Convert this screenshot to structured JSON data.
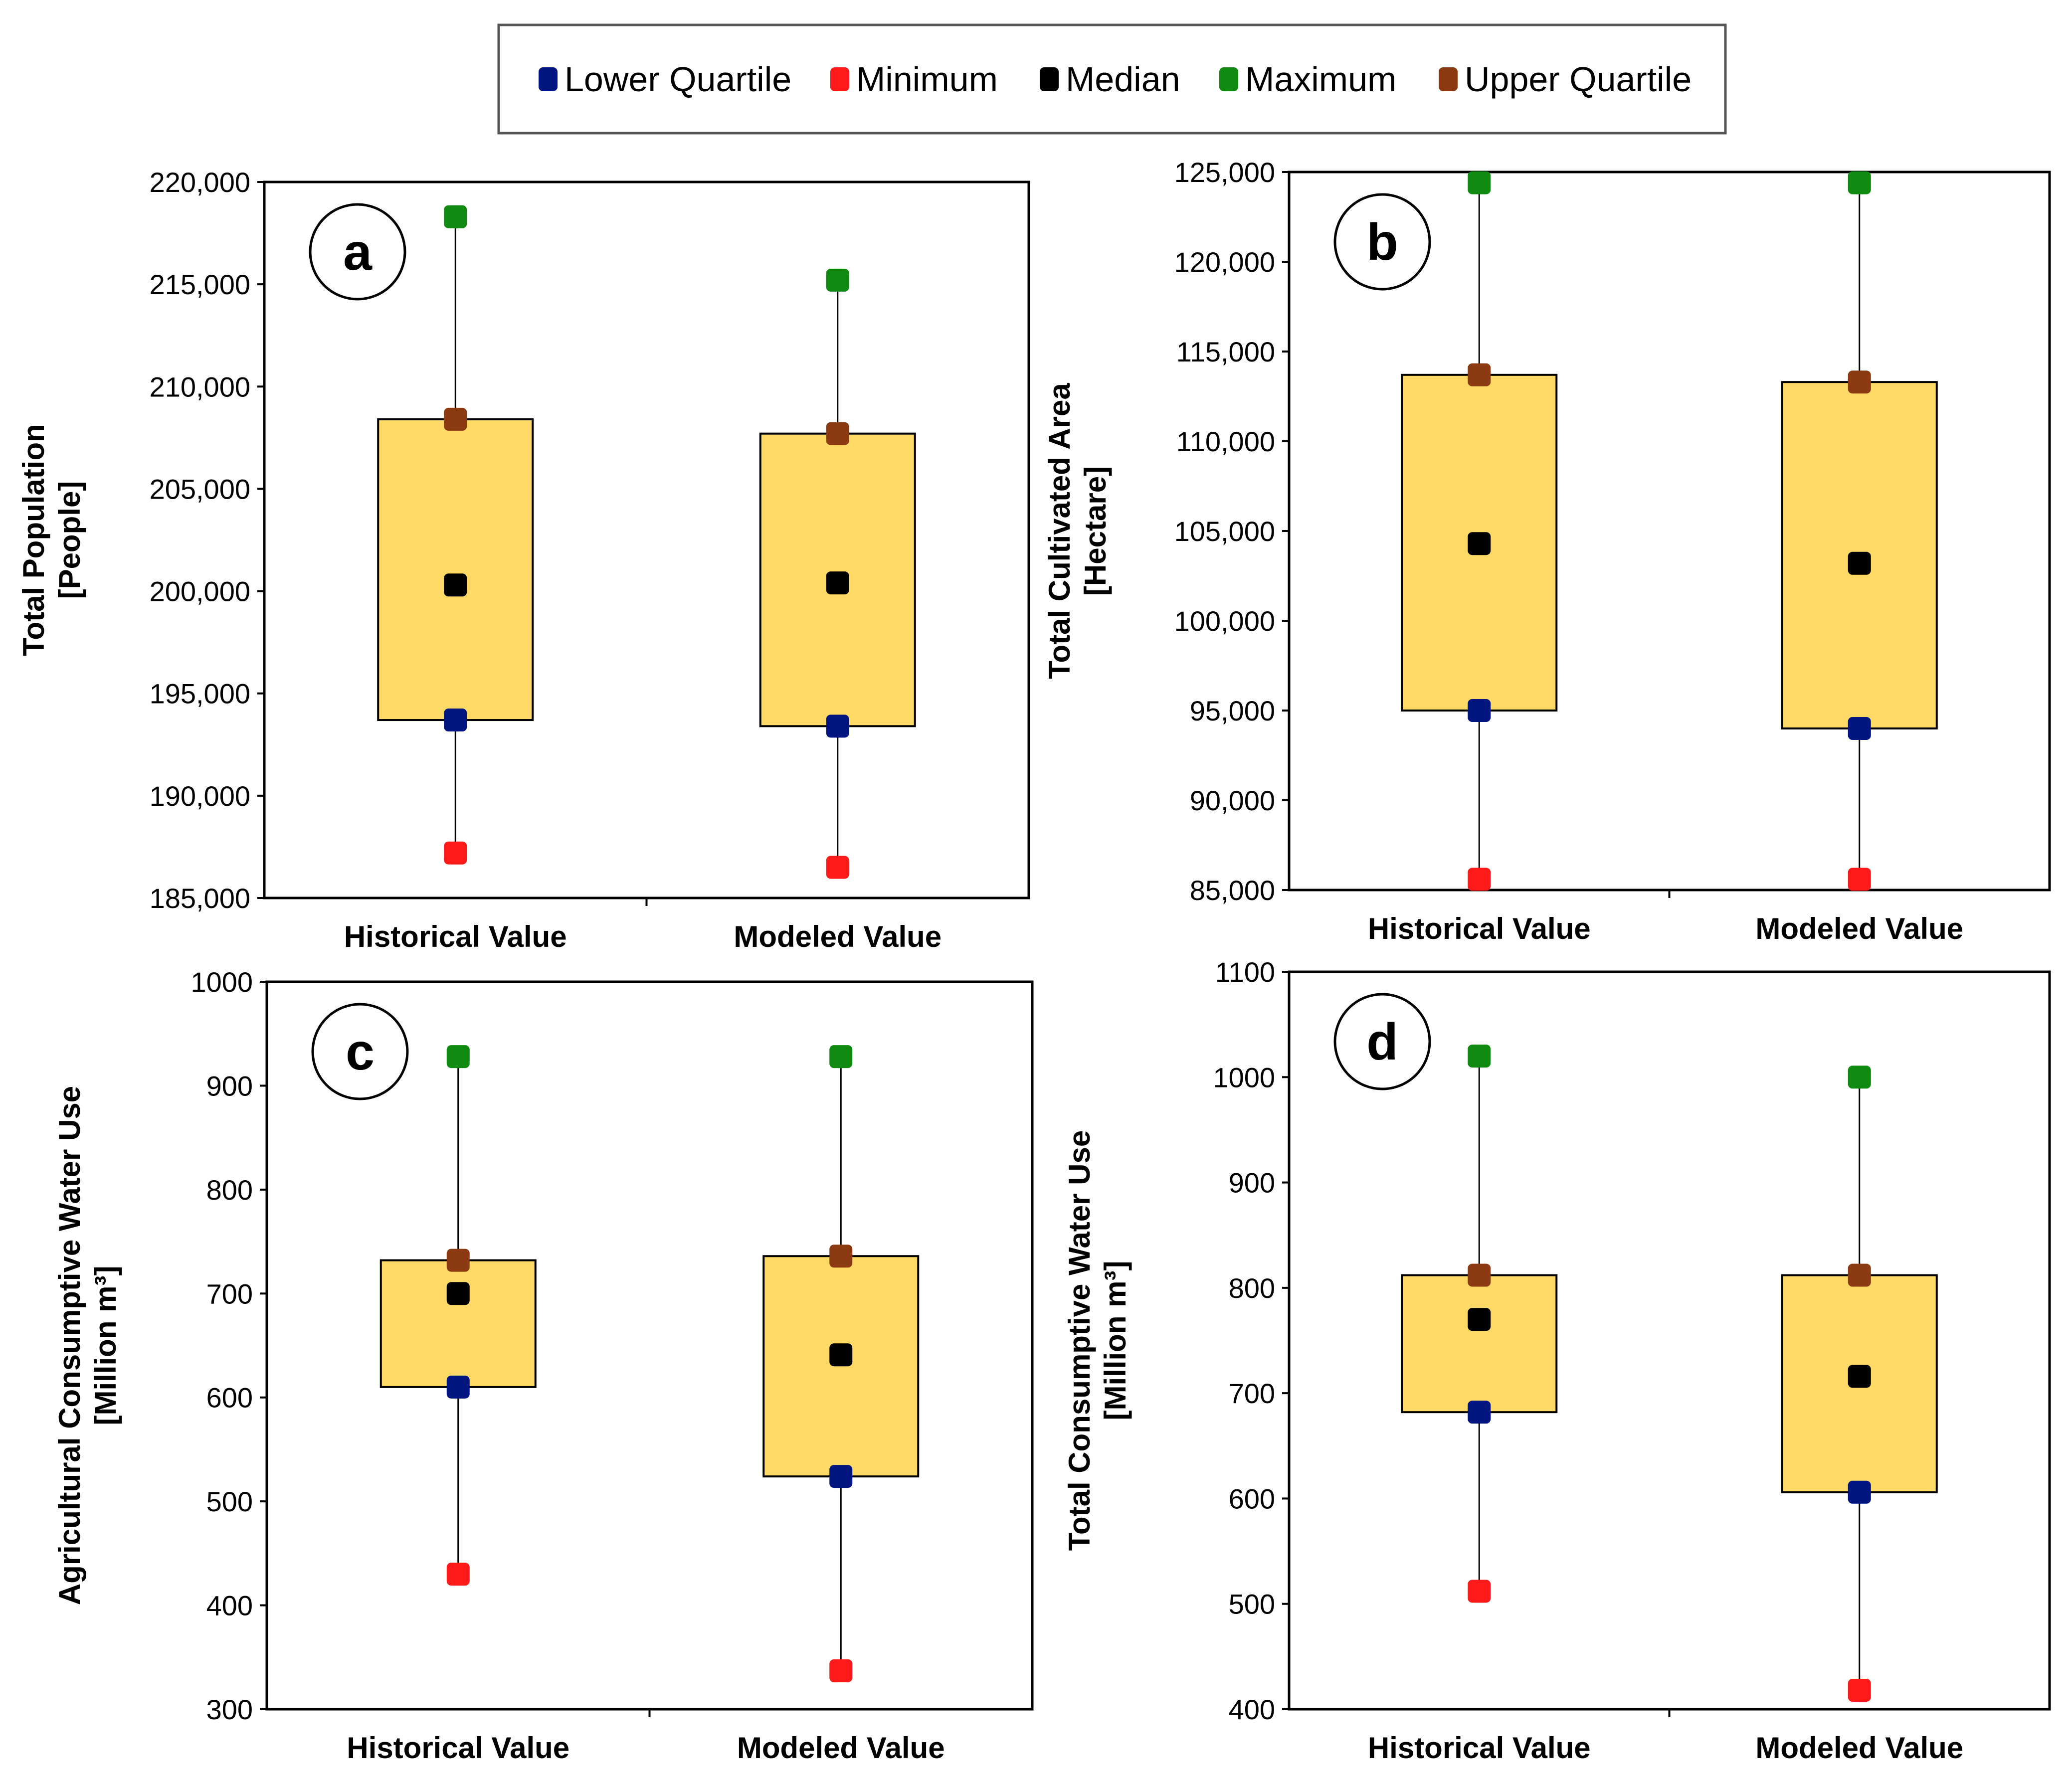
{
  "colors": {
    "lower_quartile": "#001580",
    "minimum": "#ff1a1a",
    "median": "#000000",
    "maximum": "#118a11",
    "upper_quartile": "#8b3a12",
    "box_fill": "#ffd966"
  },
  "legend": {
    "entries": [
      {
        "key": "lower_quartile",
        "label": "Lower Quartile"
      },
      {
        "key": "minimum",
        "label": "Minimum"
      },
      {
        "key": "median",
        "label": "Median"
      },
      {
        "key": "maximum",
        "label": "Maximum"
      },
      {
        "key": "upper_quartile",
        "label": "Upper Quartile"
      }
    ]
  },
  "chart_data": [
    {
      "type": "box",
      "panel_label": "a",
      "ylabel_line1": "Total Population",
      "ylabel_line2": "[People]",
      "categories": [
        "Historical Value",
        "Modeled Value"
      ],
      "ylim": [
        185000,
        220000
      ],
      "yticks": [
        185000,
        190000,
        195000,
        200000,
        205000,
        210000,
        215000,
        220000
      ],
      "ytick_labels": [
        "185,000",
        "190,000",
        "195,000",
        "200,000",
        "205,000",
        "210,000",
        "215,000",
        "220,000"
      ],
      "series": [
        {
          "category": "Historical Value",
          "minimum": 187200,
          "lower_quartile": 193700,
          "median": 200300,
          "upper_quartile": 208400,
          "maximum": 218300
        },
        {
          "category": "Modeled Value",
          "minimum": 186500,
          "lower_quartile": 193400,
          "median": 200400,
          "upper_quartile": 207700,
          "maximum": 215200
        }
      ]
    },
    {
      "type": "box",
      "panel_label": "b",
      "ylabel_line1": "Total Cultivated Area",
      "ylabel_line2": "[Hectare]",
      "categories": [
        "Historical Value",
        "Modeled Value"
      ],
      "ylim": [
        85000,
        125000
      ],
      "yticks": [
        85000,
        90000,
        95000,
        100000,
        105000,
        110000,
        115000,
        120000,
        125000
      ],
      "ytick_labels": [
        "85,000",
        "90,000",
        "95,000",
        "100,000",
        "105,000",
        "110,000",
        "115,000",
        "120,000",
        "125,000"
      ],
      "series": [
        {
          "category": "Historical Value",
          "minimum": 85600,
          "lower_quartile": 95000,
          "median": 104300,
          "upper_quartile": 113700,
          "maximum": 124400
        },
        {
          "category": "Modeled Value",
          "minimum": 85600,
          "lower_quartile": 94000,
          "median": 103200,
          "upper_quartile": 113300,
          "maximum": 124400
        }
      ]
    },
    {
      "type": "box",
      "panel_label": "c",
      "ylabel_line1": "Agricultural Consumptive Water Use",
      "ylabel_line2": "[Million m³]",
      "categories": [
        "Historical Value",
        "Modeled Value"
      ],
      "ylim": [
        300,
        1000
      ],
      "yticks": [
        300,
        400,
        500,
        600,
        700,
        800,
        900,
        1000
      ],
      "ytick_labels": [
        "300",
        "400",
        "500",
        "600",
        "700",
        "800",
        "900",
        "1000"
      ],
      "series": [
        {
          "category": "Historical Value",
          "minimum": 430,
          "lower_quartile": 610,
          "median": 700,
          "upper_quartile": 732,
          "maximum": 928
        },
        {
          "category": "Modeled Value",
          "minimum": 337,
          "lower_quartile": 524,
          "median": 641,
          "upper_quartile": 736,
          "maximum": 928
        }
      ]
    },
    {
      "type": "box",
      "panel_label": "d",
      "ylabel_line1": "Total Consumptive Water Use",
      "ylabel_line2": "[Million m³]",
      "categories": [
        "Historical Value",
        "Modeled Value"
      ],
      "ylim": [
        400,
        1100
      ],
      "yticks": [
        400,
        500,
        600,
        700,
        800,
        900,
        1000,
        1100
      ],
      "ytick_labels": [
        "400",
        "500",
        "600",
        "700",
        "800",
        "900",
        "1000",
        "1100"
      ],
      "series": [
        {
          "category": "Historical Value",
          "minimum": 512,
          "lower_quartile": 682,
          "median": 770,
          "upper_quartile": 812,
          "maximum": 1020
        },
        {
          "category": "Modeled Value",
          "minimum": 418,
          "lower_quartile": 606,
          "median": 716,
          "upper_quartile": 812,
          "maximum": 1000
        }
      ]
    }
  ]
}
